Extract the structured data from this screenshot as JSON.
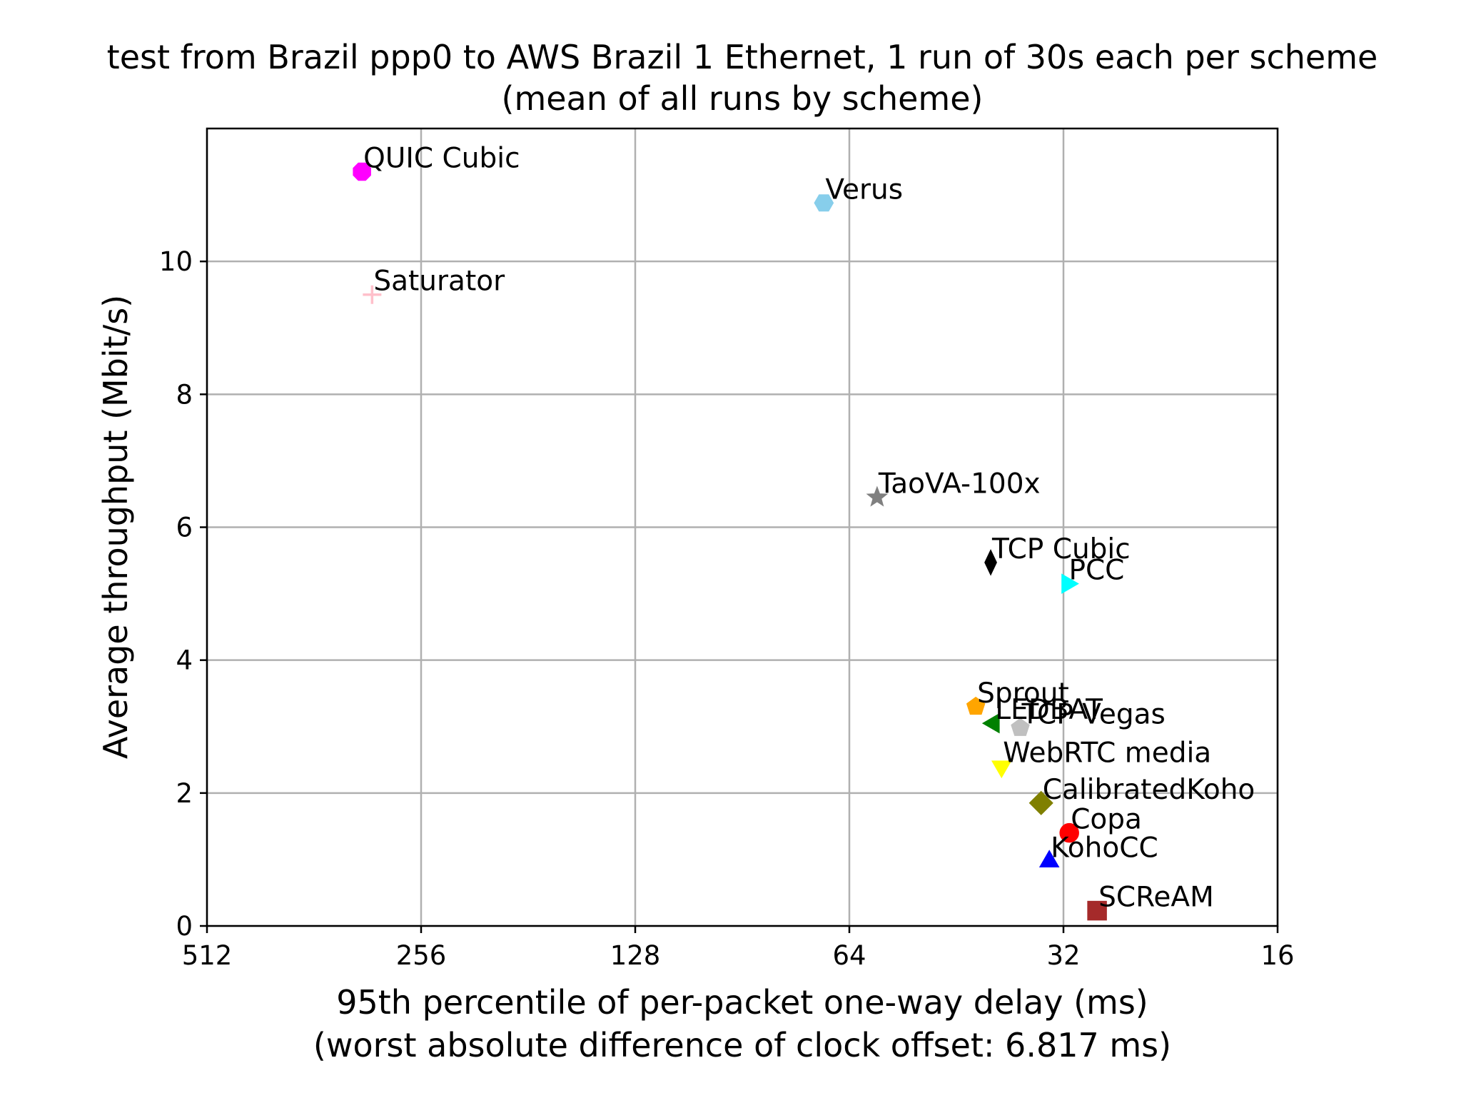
{
  "chart_data": {
    "type": "scatter",
    "title": "test from Brazil ppp0 to AWS Brazil 1 Ethernet, 1 run of 30s each per scheme",
    "subtitle": "(mean of all runs by scheme)",
    "xlabel": "95th percentile of per-packet one-way delay (ms)",
    "xlabel_sub": "(worst absolute difference of clock offset: 6.817 ms)",
    "ylabel": "Average throughput (Mbit/s)",
    "x_scale": "log2",
    "x_inverted": true,
    "xlim": [
      512,
      16
    ],
    "ylim": [
      0,
      12
    ],
    "x_ticks": [
      512,
      256,
      128,
      64,
      32,
      16
    ],
    "x_tick_labels": [
      "512",
      "256",
      "128",
      "64",
      "32",
      "16"
    ],
    "y_ticks": [
      0,
      2,
      4,
      6,
      8,
      10
    ],
    "y_tick_labels": [
      "0",
      "2",
      "4",
      "6",
      "8",
      "10"
    ],
    "grid": true,
    "points": [
      {
        "name": "QUIC Cubic",
        "x": 310,
        "y": 11.35,
        "color": "#ff00ff",
        "marker": "octagon"
      },
      {
        "name": "Verus",
        "x": 69.5,
        "y": 10.88,
        "color": "#87ceeb",
        "marker": "hexagon"
      },
      {
        "name": "Saturator",
        "x": 300,
        "y": 9.5,
        "color": "#ffc0cb",
        "marker": "plus"
      },
      {
        "name": "TaoVA-100x",
        "x": 58.5,
        "y": 6.45,
        "color": "#808080",
        "marker": "star"
      },
      {
        "name": "TCP Cubic",
        "x": 40.5,
        "y": 5.47,
        "color": "#000000",
        "marker": "thin_diamond"
      },
      {
        "name": "PCC",
        "x": 31.6,
        "y": 5.15,
        "color": "#00ffff",
        "marker": "triangle_right"
      },
      {
        "name": "Sprout",
        "x": 42.5,
        "y": 3.3,
        "color": "#ffa500",
        "marker": "pentagon"
      },
      {
        "name": "LEDBAT",
        "x": 40.1,
        "y": 3.05,
        "color": "#008000",
        "marker": "triangle_left"
      },
      {
        "name": "TCP Vegas",
        "x": 36.8,
        "y": 2.98,
        "color": "#c0c0c0",
        "marker": "pentagon"
      },
      {
        "name": "WebRTC media",
        "x": 39.1,
        "y": 2.4,
        "color": "#ffff00",
        "marker": "triangle_down"
      },
      {
        "name": "CalibratedKoho",
        "x": 34.4,
        "y": 1.85,
        "color": "#808000",
        "marker": "diamond"
      },
      {
        "name": "Copa",
        "x": 31.4,
        "y": 1.4,
        "color": "#ff0000",
        "marker": "circle"
      },
      {
        "name": "KohoCC",
        "x": 33.5,
        "y": 0.97,
        "color": "#0000ff",
        "marker": "triangle_up"
      },
      {
        "name": "SCReAM",
        "x": 28.7,
        "y": 0.23,
        "color": "#a52a2a",
        "marker": "square"
      }
    ]
  }
}
